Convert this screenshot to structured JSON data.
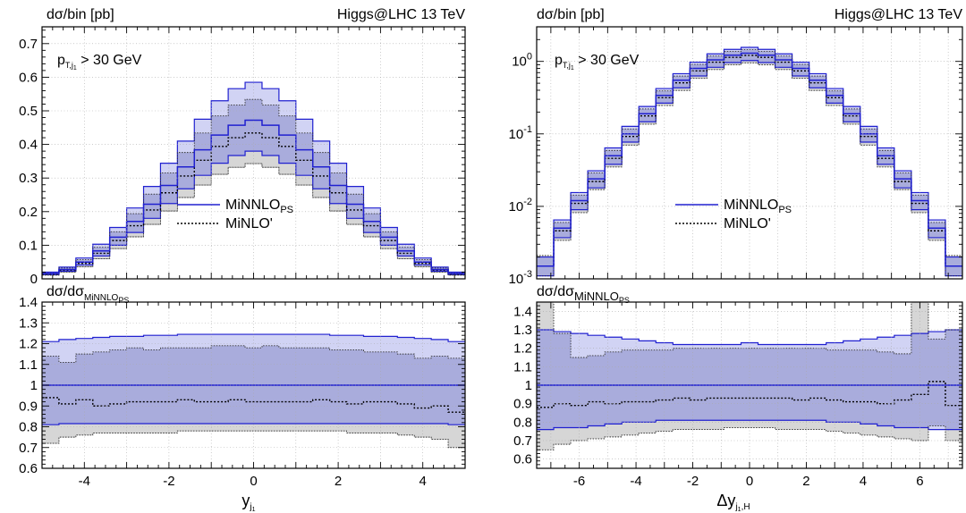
{
  "figure": {
    "header_left": "dσ/bin [pb]",
    "header_right": "Higgs@LHC 13 TeV",
    "ratio_header_main": "dσ/dσ",
    "ratio_header_sub1": "MiNNLO",
    "ratio_header_sub2": "PS",
    "cut_p": "p",
    "cut_sub": "T,j",
    "cut_subsub": "1",
    "cut_rest": " > 30 GeV",
    "legend_main": "MiNNLO",
    "legend_main_sub": "PS",
    "legend_secondary": "MiNLO'"
  },
  "chart_data": [
    {
      "type": "area",
      "panel": "left-main",
      "xlabel": "y",
      "xlabel_sub": "j",
      "xlabel_subsub": "1",
      "ylabel": "dσ/bin [pb]",
      "title": "Higgs@LHC 13 TeV",
      "xlim": [
        -5,
        5
      ],
      "ylim": [
        0,
        0.75
      ],
      "yticks": [
        "0",
        "0.1",
        "0.2",
        "0.3",
        "0.4",
        "0.5",
        "0.6",
        "0.7"
      ],
      "grid": true,
      "legend_position": "center",
      "x": [
        -4.8,
        -4.4,
        -4.0,
        -3.6,
        -3.2,
        -2.8,
        -2.4,
        -2.0,
        -1.6,
        -1.2,
        -0.8,
        -0.4,
        0.0,
        0.4,
        0.8,
        1.2,
        1.6,
        2.0,
        2.4,
        2.8,
        3.2,
        3.6,
        4.0,
        4.4,
        4.8
      ],
      "series": [
        {
          "name": "MiNNLO_PS",
          "values": [
            0.016,
            0.028,
            0.05,
            0.083,
            0.124,
            0.171,
            0.222,
            0.278,
            0.333,
            0.384,
            0.428,
            0.457,
            0.472,
            0.457,
            0.428,
            0.384,
            0.333,
            0.278,
            0.222,
            0.171,
            0.124,
            0.083,
            0.05,
            0.028,
            0.016
          ],
          "band_lo": [
            0.013,
            0.023,
            0.041,
            0.068,
            0.1,
            0.138,
            0.18,
            0.224,
            0.268,
            0.308,
            0.344,
            0.367,
            0.38,
            0.367,
            0.344,
            0.308,
            0.268,
            0.224,
            0.18,
            0.138,
            0.1,
            0.068,
            0.041,
            0.023,
            0.013
          ],
          "band_hi": [
            0.02,
            0.035,
            0.062,
            0.103,
            0.153,
            0.211,
            0.275,
            0.344,
            0.41,
            0.475,
            0.53,
            0.566,
            0.585,
            0.566,
            0.53,
            0.475,
            0.41,
            0.344,
            0.275,
            0.211,
            0.153,
            0.103,
            0.062,
            0.035,
            0.02
          ]
        },
        {
          "name": "MiNLO'",
          "values": [
            0.014,
            0.026,
            0.046,
            0.076,
            0.114,
            0.158,
            0.205,
            0.256,
            0.306,
            0.353,
            0.394,
            0.42,
            0.434,
            0.42,
            0.394,
            0.353,
            0.306,
            0.256,
            0.205,
            0.158,
            0.114,
            0.076,
            0.046,
            0.026,
            0.014
          ],
          "band_lo": [
            0.011,
            0.02,
            0.036,
            0.06,
            0.09,
            0.125,
            0.162,
            0.202,
            0.242,
            0.279,
            0.311,
            0.332,
            0.343,
            0.332,
            0.311,
            0.279,
            0.242,
            0.202,
            0.162,
            0.125,
            0.09,
            0.06,
            0.036,
            0.02,
            0.011
          ],
          "band_hi": [
            0.017,
            0.032,
            0.057,
            0.094,
            0.14,
            0.194,
            0.252,
            0.315,
            0.376,
            0.434,
            0.485,
            0.517,
            0.534,
            0.517,
            0.485,
            0.434,
            0.376,
            0.315,
            0.252,
            0.194,
            0.14,
            0.094,
            0.057,
            0.032,
            0.017
          ]
        }
      ]
    },
    {
      "type": "area",
      "panel": "left-ratio",
      "ylabel": "dσ/dσMiNNLO_PS",
      "xlim": [
        -5,
        5
      ],
      "ylim": [
        0.6,
        1.4
      ],
      "xticks": [
        "-4",
        "-2",
        "0",
        "2",
        "4"
      ],
      "yticks": [
        "0.6",
        "0.7",
        "0.8",
        "0.9",
        "1",
        "1.1",
        "1.2",
        "1.3",
        "1.4"
      ],
      "grid": true,
      "x": [
        -4.8,
        -4.4,
        -4.0,
        -3.6,
        -3.2,
        -2.8,
        -2.4,
        -2.0,
        -1.6,
        -1.2,
        -0.8,
        -0.4,
        0.0,
        0.4,
        0.8,
        1.2,
        1.6,
        2.0,
        2.4,
        2.8,
        3.2,
        3.6,
        4.0,
        4.4,
        4.8
      ],
      "series": [
        {
          "name": "MiNNLO_PS",
          "values": [
            1,
            1,
            1,
            1,
            1,
            1,
            1,
            1,
            1,
            1,
            1,
            1,
            1,
            1,
            1,
            1,
            1,
            1,
            1,
            1,
            1,
            1,
            1,
            1,
            1
          ],
          "band_lo": [
            0.81,
            0.815,
            0.815,
            0.815,
            0.815,
            0.815,
            0.815,
            0.815,
            0.815,
            0.815,
            0.815,
            0.815,
            0.815,
            0.815,
            0.815,
            0.815,
            0.815,
            0.815,
            0.815,
            0.815,
            0.815,
            0.815,
            0.815,
            0.815,
            0.81
          ],
          "band_hi": [
            1.21,
            1.22,
            1.225,
            1.23,
            1.235,
            1.235,
            1.24,
            1.24,
            1.245,
            1.245,
            1.245,
            1.245,
            1.245,
            1.245,
            1.245,
            1.245,
            1.245,
            1.24,
            1.24,
            1.235,
            1.235,
            1.23,
            1.225,
            1.22,
            1.21
          ]
        },
        {
          "name": "MiNLO'",
          "values": [
            0.94,
            0.91,
            0.93,
            0.9,
            0.91,
            0.92,
            0.92,
            0.92,
            0.93,
            0.92,
            0.92,
            0.93,
            0.92,
            0.92,
            0.92,
            0.92,
            0.93,
            0.92,
            0.91,
            0.92,
            0.92,
            0.91,
            0.89,
            0.9,
            0.87
          ],
          "band_lo": [
            0.72,
            0.75,
            0.76,
            0.77,
            0.77,
            0.77,
            0.77,
            0.77,
            0.78,
            0.78,
            0.78,
            0.78,
            0.78,
            0.78,
            0.78,
            0.78,
            0.78,
            0.78,
            0.77,
            0.77,
            0.77,
            0.76,
            0.75,
            0.74,
            0.7
          ],
          "band_hi": [
            1.14,
            1.11,
            1.15,
            1.16,
            1.17,
            1.18,
            1.17,
            1.18,
            1.18,
            1.18,
            1.19,
            1.19,
            1.18,
            1.19,
            1.18,
            1.18,
            1.18,
            1.17,
            1.17,
            1.16,
            1.16,
            1.15,
            1.13,
            1.14,
            1.13
          ]
        }
      ]
    },
    {
      "type": "area",
      "panel": "right-main",
      "xlabel": "Δy",
      "xlabel_sub": "j",
      "xlabel_subsub": "1",
      "xlabel_sub2": ",H",
      "ylabel": "dσ/bin [pb]",
      "title": "Higgs@LHC 13 TeV",
      "log_y": true,
      "xlim": [
        -7.5,
        7.5
      ],
      "ylim": [
        0.001,
        3
      ],
      "yticks": [
        "10",
        "10",
        "10",
        "10"
      ],
      "ytick_exponents": [
        "-3",
        "-2",
        "-1",
        "0"
      ],
      "grid": true,
      "legend_position": "center",
      "x": [
        -7.2,
        -6.6,
        -6.0,
        -5.4,
        -4.8,
        -4.2,
        -3.6,
        -3.0,
        -2.4,
        -1.8,
        -1.2,
        -0.6,
        0.0,
        0.6,
        1.2,
        1.8,
        2.4,
        3.0,
        3.6,
        4.2,
        4.8,
        5.4,
        6.0,
        6.6,
        7.2
      ],
      "series": [
        {
          "name": "MiNNLO_PS",
          "values": [
            0.0015,
            0.005,
            0.012,
            0.024,
            0.05,
            0.1,
            0.19,
            0.34,
            0.55,
            0.8,
            1.05,
            1.22,
            1.3,
            1.22,
            1.05,
            0.8,
            0.55,
            0.34,
            0.19,
            0.1,
            0.05,
            0.024,
            0.012,
            0.005,
            0.0015
          ],
          "band_lo": [
            0.0011,
            0.0037,
            0.009,
            0.018,
            0.038,
            0.077,
            0.147,
            0.266,
            0.432,
            0.63,
            0.829,
            0.964,
            1.027,
            0.964,
            0.829,
            0.63,
            0.432,
            0.266,
            0.147,
            0.077,
            0.038,
            0.018,
            0.009,
            0.0037,
            0.0011
          ],
          "band_hi": [
            0.002,
            0.0065,
            0.0155,
            0.031,
            0.064,
            0.127,
            0.239,
            0.422,
            0.677,
            0.976,
            1.271,
            1.464,
            1.56,
            1.464,
            1.271,
            0.976,
            0.677,
            0.422,
            0.239,
            0.127,
            0.064,
            0.031,
            0.0155,
            0.0065,
            0.002
          ]
        },
        {
          "name": "MiNLO'",
          "values": [
            0.0015,
            0.0046,
            0.011,
            0.022,
            0.046,
            0.092,
            0.177,
            0.316,
            0.506,
            0.74,
            0.977,
            1.135,
            1.209,
            1.135,
            0.977,
            0.74,
            0.506,
            0.316,
            0.177,
            0.092,
            0.046,
            0.022,
            0.011,
            0.0046,
            0.0015
          ],
          "band_lo": [
            0.0011,
            0.0034,
            0.0082,
            0.017,
            0.035,
            0.07,
            0.136,
            0.246,
            0.397,
            0.584,
            0.772,
            0.897,
            0.955,
            0.897,
            0.772,
            0.584,
            0.397,
            0.246,
            0.136,
            0.07,
            0.035,
            0.017,
            0.0082,
            0.0034,
            0.0011
          ],
          "band_hi": [
            0.0021,
            0.006,
            0.0143,
            0.029,
            0.059,
            0.117,
            0.221,
            0.392,
            0.627,
            0.91,
            1.187,
            1.37,
            1.45,
            1.37,
            1.187,
            0.91,
            0.627,
            0.392,
            0.221,
            0.117,
            0.059,
            0.029,
            0.0143,
            0.006,
            0.0021
          ]
        }
      ]
    },
    {
      "type": "area",
      "panel": "right-ratio",
      "ylabel": "dσ/dσMiNNLO_PS",
      "xlim": [
        -7.5,
        7.5
      ],
      "ylim": [
        0.55,
        1.45
      ],
      "xticks": [
        "-6",
        "-4",
        "-2",
        "0",
        "2",
        "4",
        "6"
      ],
      "yticks": [
        "0.6",
        "0.7",
        "0.8",
        "0.9",
        "1",
        "1.1",
        "1.2",
        "1.3",
        "1.4"
      ],
      "grid": true,
      "x": [
        -7.2,
        -6.6,
        -6.0,
        -5.4,
        -4.8,
        -4.2,
        -3.6,
        -3.0,
        -2.4,
        -1.8,
        -1.2,
        -0.6,
        0.0,
        0.6,
        1.2,
        1.8,
        2.4,
        3.0,
        3.6,
        4.2,
        4.8,
        5.4,
        6.0,
        6.6,
        7.2
      ],
      "series": [
        {
          "name": "MiNNLO_PS",
          "values": [
            1,
            1,
            1,
            1,
            1,
            1,
            1,
            1,
            1,
            1,
            1,
            1,
            1,
            1,
            1,
            1,
            1,
            1,
            1,
            1,
            1,
            1,
            1,
            1,
            1
          ],
          "band_lo": [
            0.76,
            0.77,
            0.77,
            0.78,
            0.79,
            0.8,
            0.8,
            0.81,
            0.81,
            0.81,
            0.81,
            0.81,
            0.81,
            0.81,
            0.81,
            0.81,
            0.81,
            0.8,
            0.8,
            0.79,
            0.78,
            0.77,
            0.77,
            0.76,
            0.76
          ],
          "band_hi": [
            1.3,
            1.29,
            1.28,
            1.27,
            1.26,
            1.25,
            1.24,
            1.23,
            1.22,
            1.22,
            1.22,
            1.22,
            1.23,
            1.22,
            1.22,
            1.22,
            1.22,
            1.23,
            1.24,
            1.25,
            1.26,
            1.27,
            1.28,
            1.29,
            1.3
          ]
        },
        {
          "name": "MiNLO'",
          "values": [
            0.88,
            0.9,
            0.89,
            0.91,
            0.9,
            0.91,
            0.91,
            0.92,
            0.93,
            0.92,
            0.93,
            0.93,
            0.93,
            0.93,
            0.93,
            0.92,
            0.93,
            0.92,
            0.91,
            0.91,
            0.9,
            0.92,
            0.95,
            1.02,
            0.89
          ],
          "band_lo": [
            0.65,
            0.68,
            0.7,
            0.71,
            0.72,
            0.73,
            0.74,
            0.75,
            0.76,
            0.76,
            0.76,
            0.77,
            0.77,
            0.77,
            0.76,
            0.76,
            0.76,
            0.75,
            0.74,
            0.73,
            0.72,
            0.71,
            0.7,
            0.78,
            0.7
          ],
          "band_hi": [
            1.45,
            1.28,
            1.15,
            1.16,
            1.18,
            1.19,
            1.19,
            1.19,
            1.2,
            1.2,
            1.2,
            1.2,
            1.2,
            1.2,
            1.2,
            1.2,
            1.2,
            1.19,
            1.19,
            1.19,
            1.18,
            1.17,
            1.45,
            1.25,
            1.3
          ]
        }
      ]
    }
  ]
}
